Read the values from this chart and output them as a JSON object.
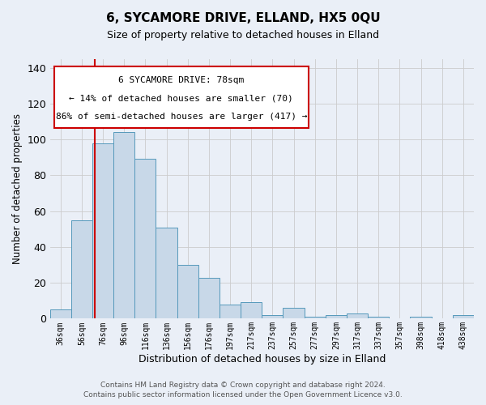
{
  "title": "6, SYCAMORE DRIVE, ELLAND, HX5 0QU",
  "subtitle": "Size of property relative to detached houses in Elland",
  "xlabel": "Distribution of detached houses by size in Elland",
  "ylabel": "Number of detached properties",
  "categories": [
    "36sqm",
    "56sqm",
    "76sqm",
    "96sqm",
    "116sqm",
    "136sqm",
    "156sqm",
    "176sqm",
    "197sqm",
    "217sqm",
    "237sqm",
    "257sqm",
    "277sqm",
    "297sqm",
    "317sqm",
    "337sqm",
    "357sqm",
    "398sqm",
    "418sqm",
    "438sqm"
  ],
  "values": [
    5,
    55,
    98,
    104,
    89,
    51,
    30,
    23,
    8,
    9,
    2,
    6,
    1,
    2,
    3,
    1,
    0,
    1,
    0,
    2
  ],
  "bar_color": "#c8d8e8",
  "bar_edge_color": "#5599bb",
  "grid_color": "#cccccc",
  "bg_color": "#eaeff7",
  "annotation_text_line1": "6 SYCAMORE DRIVE: 78sqm",
  "annotation_text_line2": "← 14% of detached houses are smaller (70)",
  "annotation_text_line3": "86% of semi-detached houses are larger (417) →",
  "annotation_box_color": "#ffffff",
  "annotation_box_edge": "#cc0000",
  "vline_color": "#cc0000",
  "footer1": "Contains HM Land Registry data © Crown copyright and database right 2024.",
  "footer2": "Contains public sector information licensed under the Open Government Licence v3.0.",
  "ylim": [
    0,
    145
  ],
  "yticks": [
    0,
    20,
    40,
    60,
    80,
    100,
    120,
    140
  ],
  "vline_x": 1.6
}
